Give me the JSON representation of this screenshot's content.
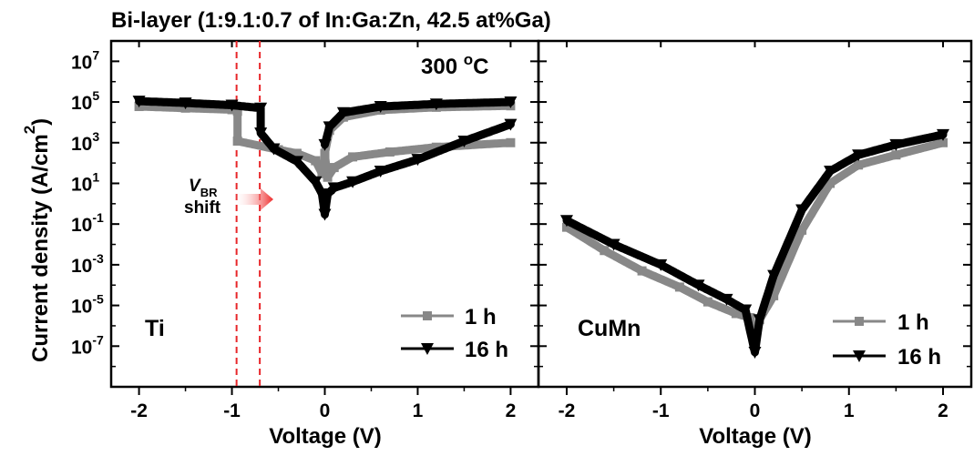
{
  "chart_data": {
    "type": "scatter",
    "title": "Bi-layer (1:9.1:0.7 of In:Ga:Zn, 42.5 at%Ga)",
    "ylabel": {
      "main": "Current density (A/cm",
      "exponent": "2",
      "close": ")"
    },
    "y_scale": "log",
    "ylim": [
      1e-09,
      100000000.0
    ],
    "ytick_labels": [
      {
        "base": "10",
        "exp": "7",
        "value": 10000000.0
      },
      {
        "base": "10",
        "exp": "5",
        "value": 100000.0
      },
      {
        "base": "10",
        "exp": "3",
        "value": 1000.0
      },
      {
        "base": "10",
        "exp": "1",
        "value": 10.0
      },
      {
        "base": "10",
        "exp": "-1",
        "value": 0.1
      },
      {
        "base": "10",
        "exp": "-3",
        "value": 0.001
      },
      {
        "base": "10",
        "exp": "-5",
        "value": 1e-05
      },
      {
        "base": "10",
        "exp": "-7",
        "value": 1e-07
      }
    ],
    "xtick_labels": [
      "-2",
      "-1",
      "0",
      "1",
      "2"
    ],
    "colors": {
      "1h": "#888888",
      "16h": "#000000",
      "vbr_line": "#e8262a",
      "arrow": "#ee2a2a"
    },
    "panels": [
      {
        "name": "Ti",
        "xlabel": "Voltage (V)",
        "xlim": [
          -2.3,
          2.3
        ],
        "temperature": {
          "value": "300 ",
          "unit_sup": "o",
          "unit": "C"
        },
        "vbr_lines_x": [
          -0.95,
          -0.7
        ],
        "annotation": {
          "symbol": "V",
          "subscript": "BR",
          "text": "shift"
        },
        "legend": [
          "1 h",
          "16 h"
        ],
        "series": [
          {
            "name": "1 h",
            "marker": "square",
            "x": [
              -2.0,
              -1.5,
              -1.0,
              -0.94,
              -0.94,
              -0.5,
              -0.3,
              -0.1,
              -0.03,
              0.0,
              0.03,
              0.1,
              0.3,
              0.7,
              1.2,
              2.0
            ],
            "y": [
              60000,
              50000,
              42000,
              35000,
              1200,
              450,
              300,
              130,
              30,
              250,
              20,
              60,
              200,
              350,
              600,
              1000
            ]
          },
          {
            "name": "1 h",
            "marker": "square",
            "x": [
              0.0,
              0.05,
              0.2,
              0.6,
              1.2,
              2.0
            ],
            "y": [
              300,
              4000,
              18000,
              40000,
              55000,
              65000
            ]
          },
          {
            "name": "16 h",
            "marker": "triangle-down",
            "x": [
              -2.0,
              -1.5,
              -1.0,
              -0.69,
              -0.69,
              -0.55,
              -0.3,
              -0.1,
              -0.03,
              0.0,
              0.03,
              0.1,
              0.3,
              0.6,
              1.0,
              1.5,
              2.0
            ],
            "y": [
              110000,
              90000,
              70000,
              50000,
              3000,
              500,
              120,
              12,
              3,
              0.3,
              3,
              6,
              12,
              40,
              150,
              1200,
              8000
            ]
          },
          {
            "name": "16 h",
            "marker": "triangle-down",
            "x": [
              0.0,
              0.05,
              0.2,
              0.6,
              1.2,
              2.0
            ],
            "y": [
              800,
              6000,
              30000,
              60000,
              80000,
              100000
            ]
          }
        ]
      },
      {
        "name": "CuMn",
        "xlabel": "Voltage (V)",
        "xlim": [
          -2.3,
          2.3
        ],
        "legend": [
          "1 h",
          "16 h"
        ],
        "series": [
          {
            "name": "1 h",
            "marker": "square",
            "x": [
              -2.0,
              -1.6,
              -1.2,
              -0.8,
              -0.5,
              -0.2,
              -0.05,
              0.0,
              0.05,
              0.2,
              0.5,
              0.8,
              1.1,
              1.5,
              2.0
            ],
            "y": [
              0.07,
              0.005,
              0.0005,
              8e-05,
              1.5e-05,
              4e-06,
              2.5e-06,
              1e-07,
              2e-06,
              3e-05,
              0.05,
              10,
              80,
              250,
              1000
            ]
          },
          {
            "name": "16 h",
            "marker": "triangle-down",
            "x": [
              -2.0,
              -1.5,
              -1.0,
              -0.6,
              -0.3,
              -0.1,
              0.0,
              0.05,
              0.2,
              0.5,
              0.8,
              1.1,
              1.5,
              2.0
            ],
            "y": [
              0.15,
              0.01,
              0.001,
              0.0001,
              2e-05,
              6e-06,
              5e-08,
              2e-06,
              0.0003,
              0.5,
              40,
              250,
              800,
              2500
            ]
          }
        ]
      }
    ]
  }
}
